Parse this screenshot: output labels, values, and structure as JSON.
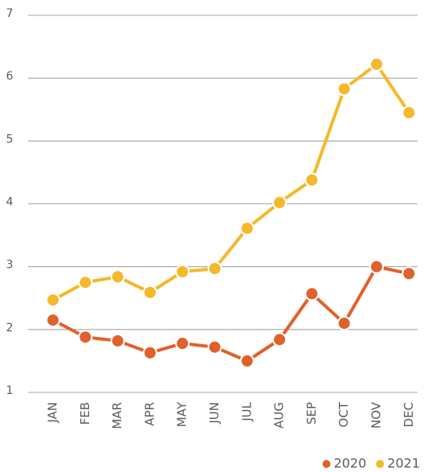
{
  "chart_data": {
    "type": "line",
    "categories": [
      "JAN",
      "FEB",
      "MAR",
      "APR",
      "MAY",
      "JUN",
      "JUL",
      "AUG",
      "SEP",
      "OCT",
      "NOV",
      "DEC"
    ],
    "series": [
      {
        "name": "2020",
        "color": "#e0612b",
        "values": [
          2.15,
          1.88,
          1.82,
          1.63,
          1.78,
          1.72,
          1.5,
          1.84,
          2.57,
          2.1,
          3.0,
          2.89
        ]
      },
      {
        "name": "2021",
        "color": "#f4b82a",
        "values": [
          2.47,
          2.75,
          2.84,
          2.59,
          2.92,
          2.97,
          3.61,
          4.02,
          4.38,
          5.83,
          6.22,
          5.45
        ]
      }
    ],
    "ylim": [
      1,
      7
    ],
    "yticks": [
      1,
      2,
      3,
      4,
      5,
      6,
      7
    ],
    "grid": true,
    "legend": "lower right"
  }
}
